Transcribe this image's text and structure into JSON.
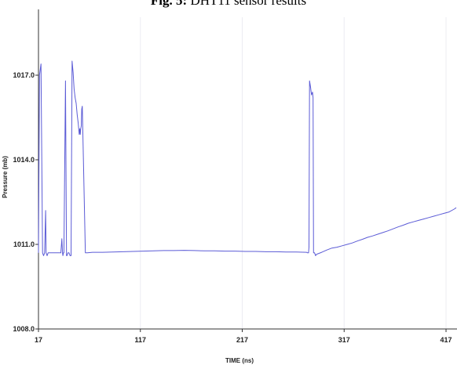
{
  "caption": {
    "label": "Fig. 5:",
    "text": "DHT11 sensor results"
  },
  "chart_data": {
    "type": "line",
    "xlabel": "TIME (ns)",
    "ylabel": "Pressure (mb)",
    "xlim": [
      17,
      427
    ],
    "ylim": [
      1008,
      1019
    ],
    "x_ticks": [
      17,
      117,
      217,
      317,
      417
    ],
    "x_tick_labels": [
      "17",
      "117",
      "217",
      "317",
      "417"
    ],
    "y_ticks": [
      1008,
      1011,
      1014,
      1017
    ],
    "y_tick_labels": [
      "1008.0",
      "1011.0",
      "1014.0",
      "1017.0"
    ],
    "grid": "vertical",
    "line_color": "#5b5bd6",
    "series": [
      {
        "x": [
          17,
          18,
          19.5,
          21,
          22,
          23,
          24,
          24.5,
          25.5,
          26.5,
          27,
          27.5,
          33,
          39,
          40,
          40.6,
          41,
          41.5,
          42,
          43.5,
          44.5,
          45,
          46,
          47,
          48,
          49,
          50,
          51,
          52,
          53,
          54,
          55,
          56,
          57,
          57.5,
          58,
          58.5,
          59,
          59.5,
          60,
          63,
          65,
          70,
          80,
          90,
          100,
          110,
          120,
          130,
          140,
          150,
          160,
          170,
          180,
          190,
          200,
          210,
          220,
          230,
          240,
          250,
          260,
          270,
          280,
          281,
          282,
          282.5,
          283,
          284,
          285,
          286,
          286.5,
          287,
          288,
          289,
          290,
          295,
          300,
          305,
          310,
          315,
          320,
          325,
          330,
          335,
          340,
          345,
          350,
          355,
          360,
          365,
          370,
          375,
          380,
          385,
          390,
          395,
          400,
          405,
          410,
          415,
          420,
          425,
          427
        ],
        "y": [
          1010.7,
          1017,
          1017.4,
          1010.7,
          1010.6,
          1010.7,
          1012.2,
          1010.7,
          1010.6,
          1010.7,
          1010.7,
          1010.7,
          1010.7,
          1010.7,
          1011.2,
          1010.7,
          1010.6,
          1010.7,
          1010.7,
          1016.8,
          1010.6,
          1010.6,
          1010.7,
          1010.7,
          1010.6,
          1010.6,
          1017.5,
          1017.1,
          1016.5,
          1016.2,
          1016,
          1015.6,
          1015.3,
          1014.9,
          1015.1,
          1014.9,
          1015.1,
          1015.2,
          1015.8,
          1015.9,
          1010.7,
          1010.7,
          1010.72,
          1010.72,
          1010.73,
          1010.74,
          1010.75,
          1010.76,
          1010.77,
          1010.78,
          1010.78,
          1010.79,
          1010.78,
          1010.77,
          1010.77,
          1010.76,
          1010.76,
          1010.75,
          1010.75,
          1010.74,
          1010.74,
          1010.73,
          1010.73,
          1010.72,
          1010.7,
          1010.7,
          1010.9,
          1016.8,
          1016.6,
          1016.3,
          1016.4,
          1016.2,
          1010.7,
          1010.7,
          1010.6,
          1010.65,
          1010.72,
          1010.8,
          1010.87,
          1010.9,
          1010.95,
          1011.0,
          1011.05,
          1011.12,
          1011.18,
          1011.25,
          1011.3,
          1011.36,
          1011.42,
          1011.48,
          1011.55,
          1011.62,
          1011.68,
          1011.75,
          1011.8,
          1011.85,
          1011.9,
          1011.95,
          1012.0,
          1012.05,
          1012.1,
          1012.15,
          1012.25,
          1012.3
        ]
      }
    ]
  }
}
